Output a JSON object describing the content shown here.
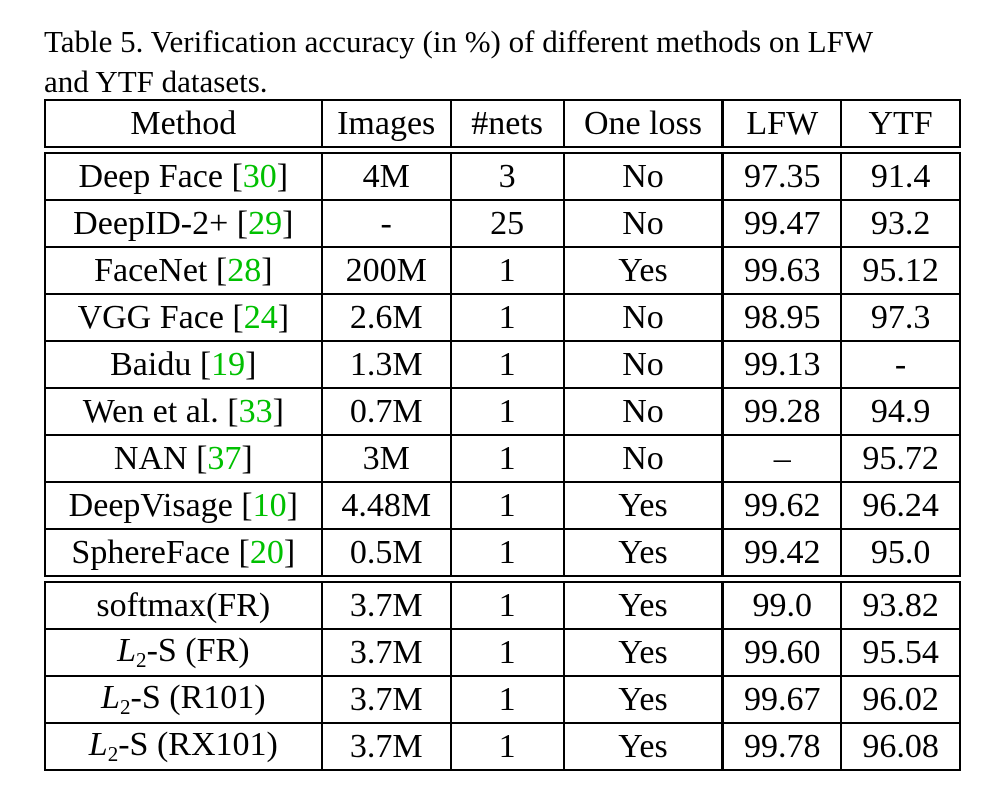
{
  "caption": {
    "line1": "Table 5. Verification accuracy (in %) of different methods on LFW",
    "line2": "and YTF datasets."
  },
  "headers": {
    "method": "Method",
    "images": "Images",
    "nets": "#nets",
    "one_loss": "One loss",
    "lfw": "LFW",
    "ytf": "YTF"
  },
  "rows": [
    {
      "name": "Deep Face ",
      "cite": "30",
      "images": "4M",
      "nets": "3",
      "one_loss": "No",
      "lfw": "97.35",
      "ytf": "91.4"
    },
    {
      "name": "DeepID-2+ ",
      "cite": "29",
      "images": "-",
      "nets": "25",
      "one_loss": "No",
      "lfw": "99.47",
      "ytf": "93.2"
    },
    {
      "name": "FaceNet ",
      "cite": "28",
      "images": "200M",
      "nets": "1",
      "one_loss": "Yes",
      "lfw": "99.63",
      "ytf": "95.12"
    },
    {
      "name": "VGG Face ",
      "cite": "24",
      "images": "2.6M",
      "nets": "1",
      "one_loss": "No",
      "lfw": "98.95",
      "ytf": "97.3"
    },
    {
      "name": "Baidu ",
      "cite": "19",
      "images": "1.3M",
      "nets": "1",
      "one_loss": "No",
      "lfw": "99.13",
      "ytf": "-"
    },
    {
      "name": "Wen et al. ",
      "cite": "33",
      "images": "0.7M",
      "nets": "1",
      "one_loss": "No",
      "lfw": "99.28",
      "ytf": "94.9"
    },
    {
      "name": "NAN ",
      "cite": "37",
      "images": "3M",
      "nets": "1",
      "one_loss": "No",
      "lfw": "–",
      "ytf": "95.72"
    },
    {
      "name": "DeepVisage ",
      "cite": "10",
      "images": "4.48M",
      "nets": "1",
      "one_loss": "Yes",
      "lfw": "99.62",
      "ytf": "96.24"
    },
    {
      "name": "SphereFace ",
      "cite": "20",
      "images": "0.5M",
      "nets": "1",
      "one_loss": "Yes",
      "lfw": "99.42",
      "ytf": "95.0"
    },
    {
      "name": "softmax(FR)",
      "images": "3.7M",
      "nets": "1",
      "one_loss": "Yes",
      "lfw": "99.0",
      "ytf": "93.82"
    },
    {
      "name_var": "L",
      "name_sub": "2",
      "name_rest": "-S (FR)",
      "images": "3.7M",
      "nets": "1",
      "one_loss": "Yes",
      "lfw": "99.60",
      "ytf": "95.54"
    },
    {
      "name_var": "L",
      "name_sub": "2",
      "name_rest": "-S (R101)",
      "images": "3.7M",
      "nets": "1",
      "one_loss": "Yes",
      "lfw": "99.67",
      "ytf": "96.02"
    },
    {
      "name_var": "L",
      "name_sub": "2",
      "name_rest": "-S (RX101)",
      "images": "3.7M",
      "nets": "1",
      "one_loss": "Yes",
      "lfw": "99.78",
      "ytf": "96.08"
    }
  ],
  "citation_color": "#00c000"
}
